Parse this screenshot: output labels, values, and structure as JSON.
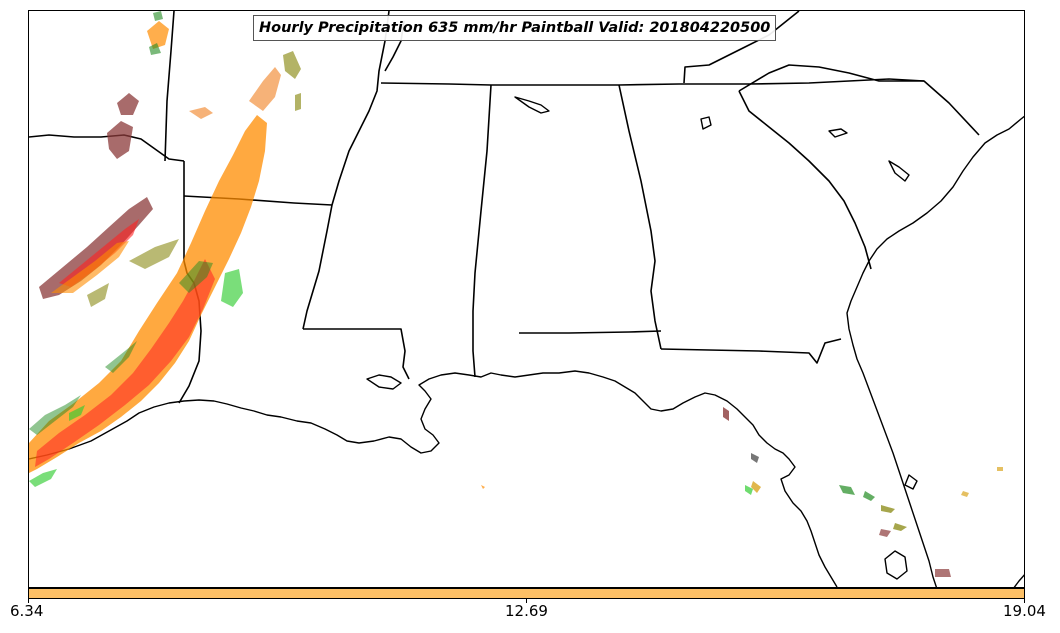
{
  "title": "Hourly Precipitation 635 mm/hr Paintball Valid: 201804220500",
  "colorbar": {
    "color": "#fdc066",
    "tick_labels": [
      "6.34",
      "12.69",
      "19.04"
    ]
  },
  "colors": {
    "paintball": [
      "#ff8c00",
      "#ff2020",
      "#228b22",
      "#32cd32",
      "#8b3a3a",
      "#808000",
      "#f4a460",
      "#daa520"
    ],
    "borders": "#000000"
  }
}
